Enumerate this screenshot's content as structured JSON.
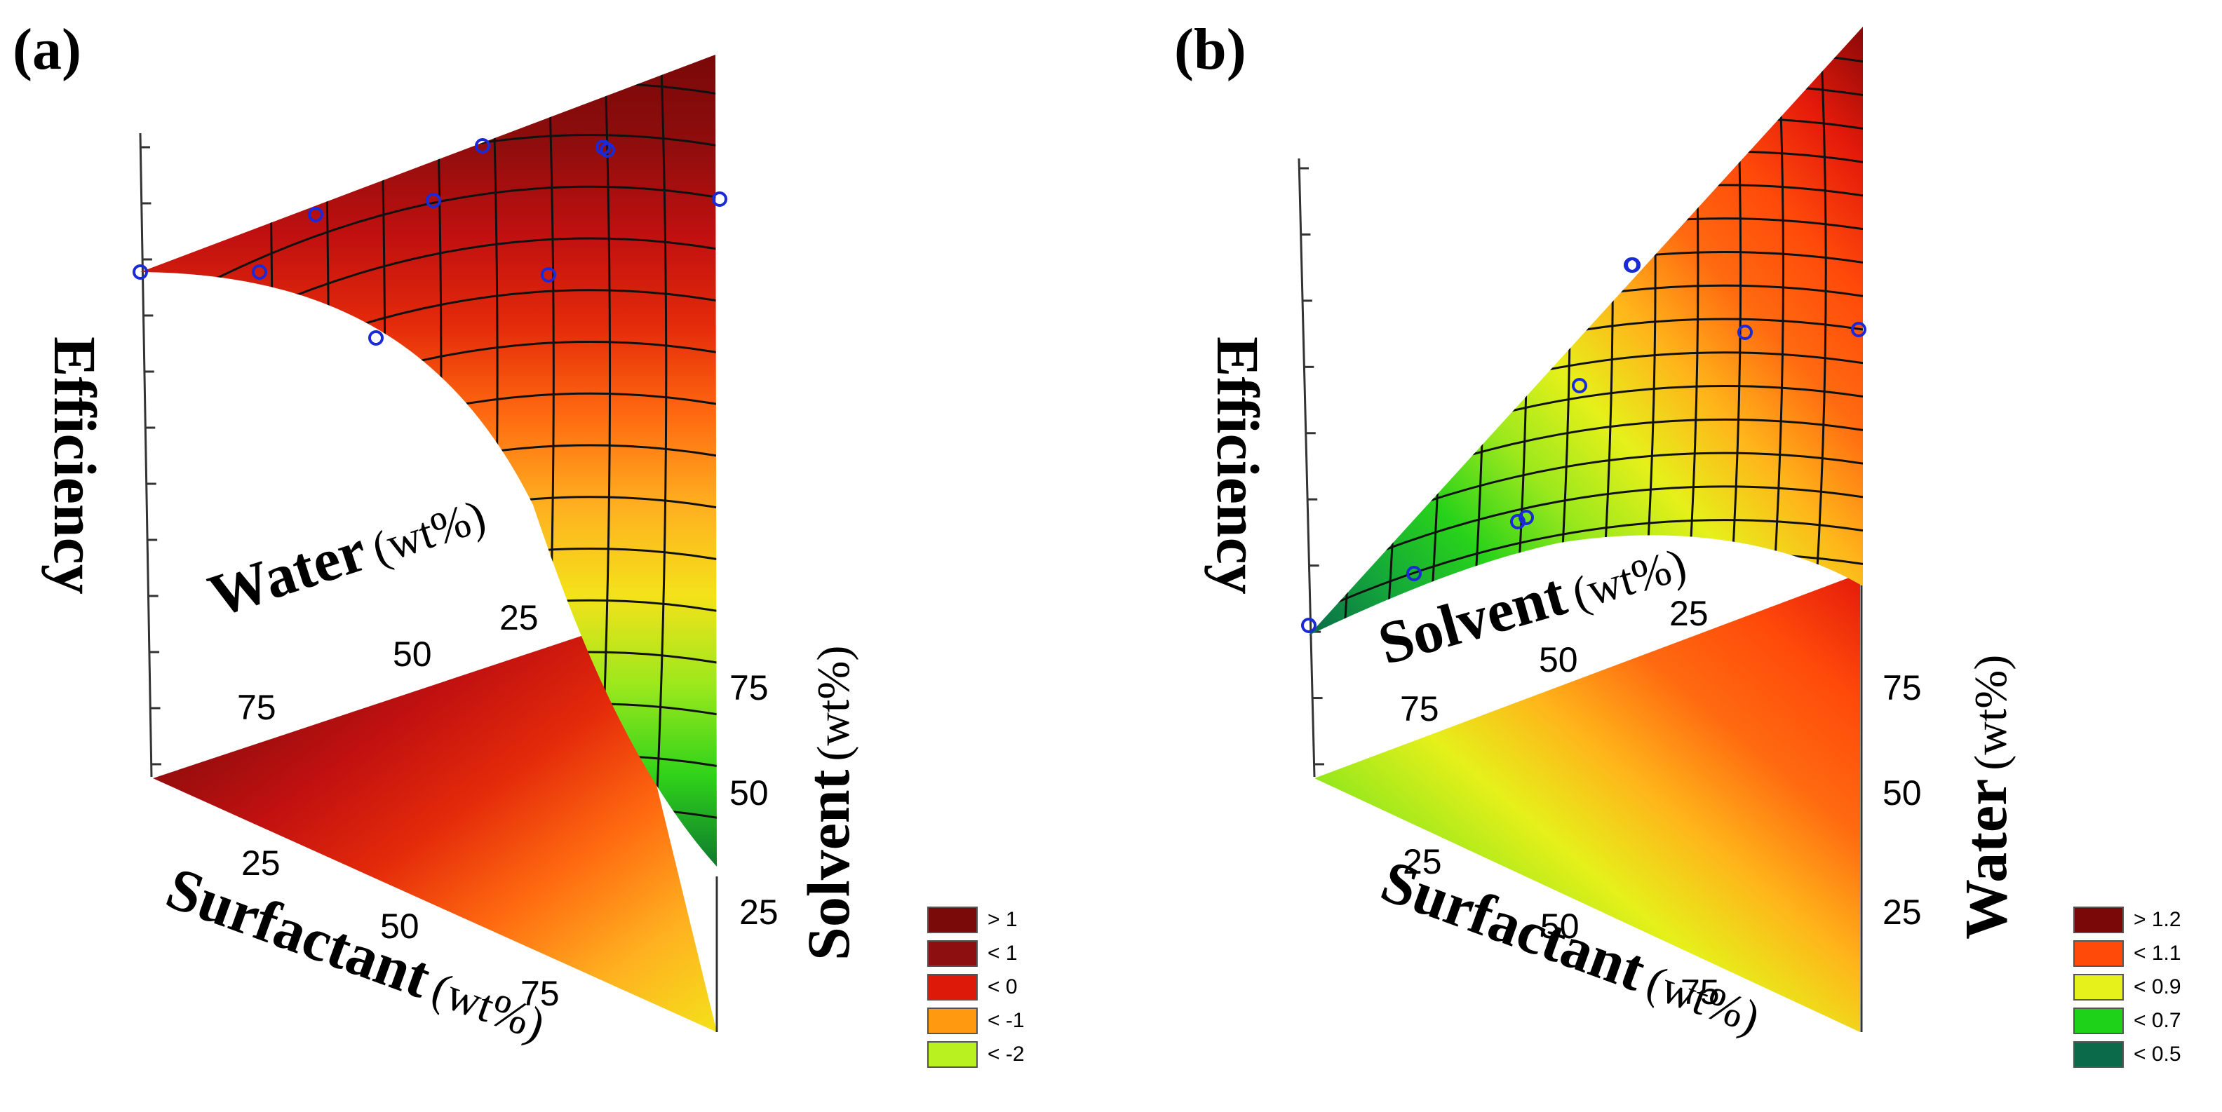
{
  "chart_data": [
    {
      "type": "ternary-surface",
      "panel_label": "(a)",
      "title": "",
      "zlabel": "Efficiency",
      "components": [
        {
          "name": "Water",
          "unit": "(wt%)",
          "ticks": [
            "75",
            "50",
            "25"
          ]
        },
        {
          "name": "Solvent",
          "unit": "(wt%)",
          "ticks": [
            "75",
            "50",
            "25"
          ]
        },
        {
          "name": "Surfactant",
          "unit": "(wt%)",
          "ticks": [
            "25",
            "50",
            "75"
          ]
        }
      ],
      "legend": [
        {
          "label": "> 1",
          "color": "#7a0a0a"
        },
        {
          "label": "< 1",
          "color": "#8e0f0f"
        },
        {
          "label": "< 0",
          "color": "#dd1a0a"
        },
        {
          "label": "< -1",
          "color": "#ff9a10"
        },
        {
          "label": "< -2",
          "color": "#b8f020"
        }
      ],
      "gradient": [
        "#7a0808",
        "#8f0d0d",
        "#c01010",
        "#e42a0a",
        "#ff6a10",
        "#ffb020",
        "#f4e21a",
        "#9ae81c",
        "#2fd21a",
        "#0e7a2e"
      ],
      "design_points": 10
    },
    {
      "type": "ternary-surface",
      "panel_label": "(b)",
      "title": "",
      "zlabel": "Efficiency",
      "components": [
        {
          "name": "Solvent",
          "unit": "(wt%)",
          "ticks": [
            "75",
            "50",
            "25"
          ]
        },
        {
          "name": "Water",
          "unit": "(wt%)",
          "ticks": [
            "75",
            "50",
            "25"
          ]
        },
        {
          "name": "Surfactant",
          "unit": "(wt%)",
          "ticks": [
            "25",
            "50",
            "75"
          ]
        }
      ],
      "legend": [
        {
          "label": "> 1.2",
          "color": "#7a0808"
        },
        {
          "label": "< 1.1",
          "color": "#ff4a0a"
        },
        {
          "label": "< 0.9",
          "color": "#e6f01a"
        },
        {
          "label": "< 0.7",
          "color": "#1ed21a"
        },
        {
          "label": "< 0.5",
          "color": "#0a6a4a"
        }
      ],
      "gradient": [
        "#0a6a4a",
        "#14a83a",
        "#28d21a",
        "#9ae81c",
        "#e6f01a",
        "#ffb41a",
        "#ff6a10",
        "#ff4a0a",
        "#e41a0a",
        "#8a0808"
      ],
      "design_points": 9
    }
  ]
}
